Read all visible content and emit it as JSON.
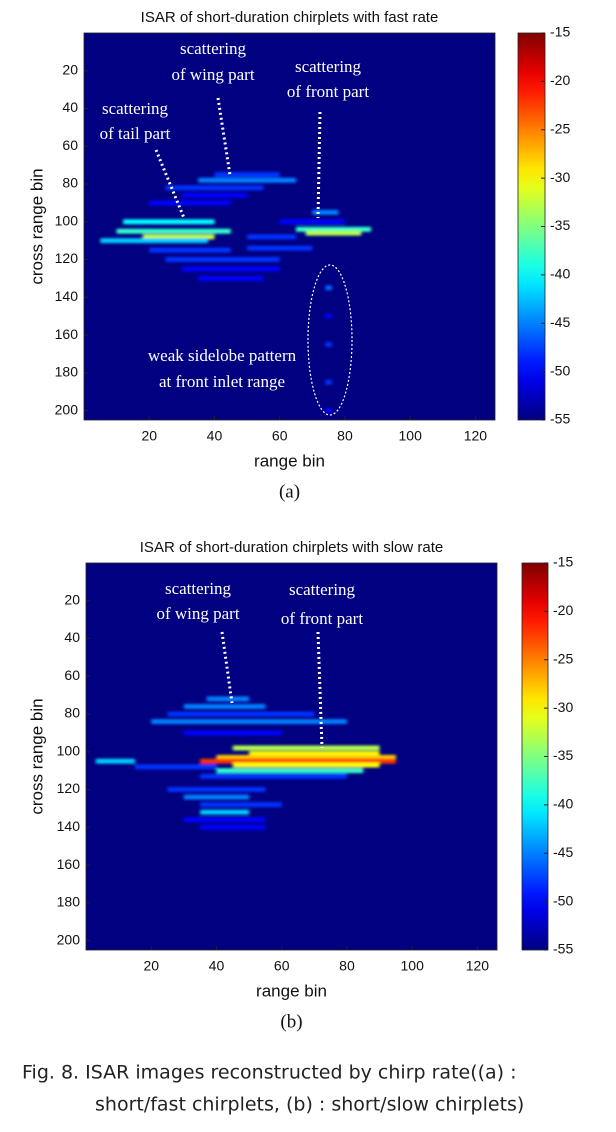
{
  "chart_data": [
    {
      "type": "heatmap",
      "title": "ISAR of short-duration chirplets with fast rate",
      "panel_label": "(a)",
      "x_label": "range bin",
      "y_label": "cross range bin",
      "colormap": "jet",
      "xlim": [
        0,
        126
      ],
      "xticks": [
        20,
        40,
        60,
        80,
        100,
        120
      ],
      "ylim": [
        0,
        205
      ],
      "yticks": [
        20,
        40,
        60,
        80,
        100,
        120,
        140,
        160,
        180,
        200
      ],
      "y_reversed": true,
      "clim": [
        -55,
        -15
      ],
      "cticks": [
        -15,
        -20,
        -25,
        -30,
        -35,
        -40,
        -45,
        -50,
        -55
      ],
      "annotations": [
        [
          "scattering",
          "of tail part"
        ],
        [
          "scattering",
          "of wing part"
        ],
        [
          "scattering",
          "of front part"
        ],
        [
          "weak sidelobe pattern",
          "at front inlet range"
        ]
      ],
      "streaks": [
        {
          "x": [
            12,
            40
          ],
          "y": 100,
          "value": -40
        },
        {
          "x": [
            10,
            45
          ],
          "y": 105,
          "value": -38
        },
        {
          "x": [
            18,
            40
          ],
          "y": 108,
          "value": -32
        },
        {
          "x": [
            5,
            38
          ],
          "y": 110,
          "value": -42
        },
        {
          "x": [
            20,
            45
          ],
          "y": 115,
          "value": -48
        },
        {
          "x": [
            25,
            60
          ],
          "y": 120,
          "value": -48
        },
        {
          "x": [
            30,
            60
          ],
          "y": 125,
          "value": -50
        },
        {
          "x": [
            35,
            55
          ],
          "y": 130,
          "value": -50
        },
        {
          "x": [
            40,
            60
          ],
          "y": 75,
          "value": -48
        },
        {
          "x": [
            35,
            65
          ],
          "y": 78,
          "value": -45
        },
        {
          "x": [
            25,
            55
          ],
          "y": 82,
          "value": -48
        },
        {
          "x": [
            30,
            50
          ],
          "y": 86,
          "value": -50
        },
        {
          "x": [
            20,
            45
          ],
          "y": 90,
          "value": -50
        },
        {
          "x": [
            65,
            88
          ],
          "y": 104,
          "value": -38
        },
        {
          "x": [
            68,
            85
          ],
          "y": 106,
          "value": -33
        },
        {
          "x": [
            70,
            78
          ],
          "y": 95,
          "value": -45
        },
        {
          "x": [
            60,
            80
          ],
          "y": 100,
          "value": -50
        },
        {
          "x": [
            50,
            70
          ],
          "y": 114,
          "value": -48
        },
        {
          "x": [
            50,
            65
          ],
          "y": 108,
          "value": -48
        },
        {
          "x": [
            74,
            76
          ],
          "y": 135,
          "value": -46
        },
        {
          "x": [
            74,
            76
          ],
          "y": 150,
          "value": -50
        },
        {
          "x": [
            74,
            76
          ],
          "y": 165,
          "value": -48
        },
        {
          "x": [
            74,
            76
          ],
          "y": 185,
          "value": -48
        },
        {
          "x": [
            74,
            76
          ],
          "y": 200,
          "value": -50
        }
      ]
    },
    {
      "type": "heatmap",
      "title": "ISAR of short-duration chirplets with slow rate",
      "panel_label": "(b)",
      "x_label": "range bin",
      "y_label": "cross range bin",
      "colormap": "jet",
      "xlim": [
        0,
        126
      ],
      "xticks": [
        20,
        40,
        60,
        80,
        100,
        120
      ],
      "ylim": [
        0,
        205
      ],
      "yticks": [
        20,
        40,
        60,
        80,
        100,
        120,
        140,
        160,
        180,
        200
      ],
      "y_reversed": true,
      "clim": [
        -55,
        -15
      ],
      "cticks": [
        -15,
        -20,
        -25,
        -30,
        -35,
        -40,
        -45,
        -50,
        -55
      ],
      "annotations": [
        [
          "scattering",
          "of wing part"
        ],
        [
          "scattering",
          "of front part"
        ]
      ],
      "streaks": [
        {
          "x": [
            37,
            50
          ],
          "y": 72,
          "value": -45
        },
        {
          "x": [
            30,
            55
          ],
          "y": 76,
          "value": -45
        },
        {
          "x": [
            25,
            70
          ],
          "y": 80,
          "value": -48
        },
        {
          "x": [
            20,
            80
          ],
          "y": 84,
          "value": -45
        },
        {
          "x": [
            30,
            60
          ],
          "y": 90,
          "value": -50
        },
        {
          "x": [
            45,
            90
          ],
          "y": 98,
          "value": -33
        },
        {
          "x": [
            50,
            90
          ],
          "y": 101,
          "value": -30
        },
        {
          "x": [
            40,
            95
          ],
          "y": 103,
          "value": -28
        },
        {
          "x": [
            35,
            95
          ],
          "y": 105,
          "value": -22
        },
        {
          "x": [
            45,
            90
          ],
          "y": 107,
          "value": -30
        },
        {
          "x": [
            40,
            85
          ],
          "y": 110,
          "value": -38
        },
        {
          "x": [
            3,
            15
          ],
          "y": 105,
          "value": -42
        },
        {
          "x": [
            15,
            40
          ],
          "y": 108,
          "value": -48
        },
        {
          "x": [
            35,
            80
          ],
          "y": 113,
          "value": -48
        },
        {
          "x": [
            25,
            55
          ],
          "y": 120,
          "value": -48
        },
        {
          "x": [
            30,
            50
          ],
          "y": 124,
          "value": -45
        },
        {
          "x": [
            35,
            60
          ],
          "y": 128,
          "value": -48
        },
        {
          "x": [
            35,
            50
          ],
          "y": 132,
          "value": -42
        },
        {
          "x": [
            30,
            55
          ],
          "y": 136,
          "value": -50
        },
        {
          "x": [
            35,
            55
          ],
          "y": 140,
          "value": -50
        }
      ]
    }
  ],
  "caption": [
    "Fig. 8. ISAR images reconstructed by chirp rate((a) :",
    "short/fast chirplets, (b) : short/slow chirplets)"
  ]
}
